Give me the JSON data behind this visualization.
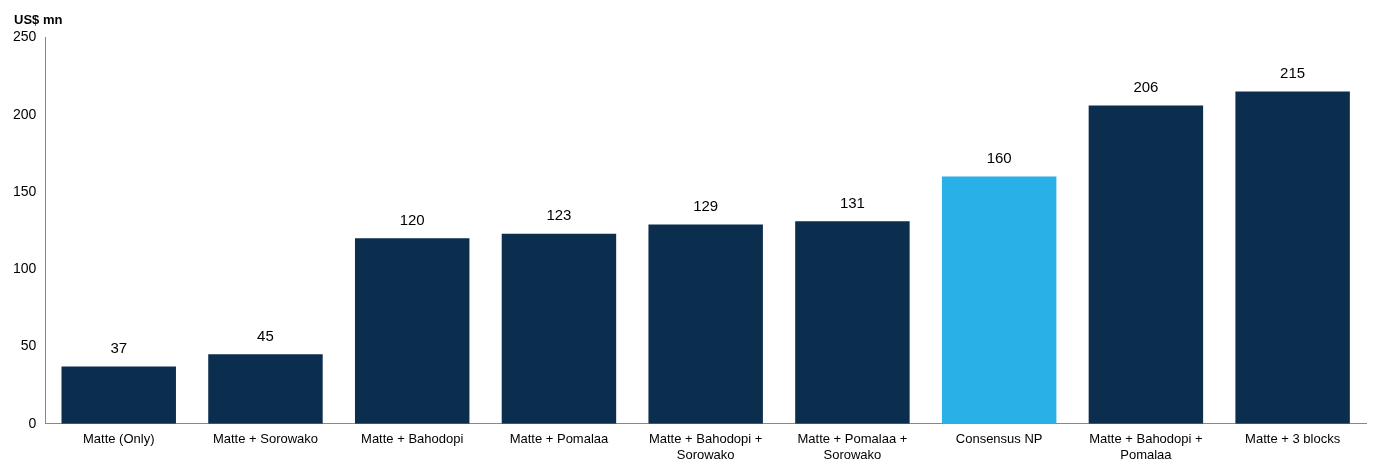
{
  "chart_data": {
    "type": "bar",
    "ylabel": "US$ mn",
    "categories": [
      "Matte (Only)",
      "Matte + Sorowako",
      "Matte + Bahodopi",
      "Matte + Pomalaa",
      "Matte + Bahodopi + Sorowako",
      "Matte + Pomalaa + Sorowako",
      "Consensus NP",
      "Matte + Bahodopi + Pomalaa",
      "Matte + 3 blocks"
    ],
    "values": [
      37,
      45,
      120,
      123,
      129,
      131,
      160,
      206,
      215
    ],
    "colors": [
      "#0b2d4e",
      "#0b2d4e",
      "#0b2d4e",
      "#0b2d4e",
      "#0b2d4e",
      "#0b2d4e",
      "#29b0e6",
      "#0b2d4e",
      "#0b2d4e"
    ],
    "ylim": [
      0,
      250
    ],
    "yticks": [
      0,
      50,
      100,
      150,
      200,
      250
    ],
    "grid": false,
    "legend": false,
    "data_labels": true
  }
}
